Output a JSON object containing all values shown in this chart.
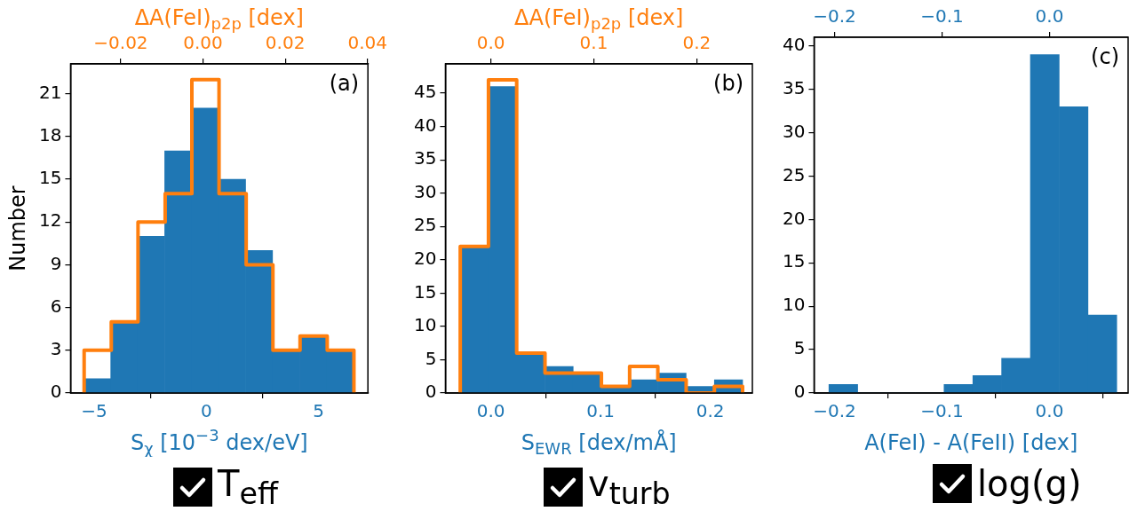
{
  "chart_data": [
    {
      "type": "histogram",
      "title": "(a)",
      "xlabel": "S$_{χ}$ [10$^{−3}$ dex/eV]",
      "x2label": "ΔA(FeI)$_{p2p}$ [dex]",
      "ylabel": "Number",
      "annotations": [
        "T$_{eff}$"
      ],
      "xlim": [
        -6.05,
        7.2
      ],
      "xticks": [
        {
          "value": -5,
          "label": "−5"
        },
        0,
        5
      ],
      "x2lim": [
        -0.0322,
        0.0401
      ],
      "x2ticks": [
        {
          "value": -0.02,
          "label": "−0.02"
        },
        {
          "value": 0,
          "label": "0.00"
        },
        0.02,
        0.04
      ],
      "ylim": [
        0,
        23.1
      ],
      "yticks": [
        0,
        3,
        6,
        9,
        12,
        15,
        18,
        21
      ],
      "bins": [
        -5.46,
        -4.26,
        -3.06,
        -1.86,
        -0.65,
        0.55,
        1.75,
        2.95,
        4.16,
        5.36,
        6.56
      ],
      "series": [
        {
          "color": "#1f77b4",
          "values": [
            1,
            5,
            11,
            17,
            20,
            15,
            10,
            3,
            4,
            3
          ]
        },
        {
          "type": "step",
          "axis": "x2",
          "color": "#ff7f0e",
          "x": [
            -0.0289,
            -0.0289,
            -0.0223,
            -0.0158,
            -0.0092,
            -0.0027,
            0.0039,
            0.0105,
            0.017,
            0.0236,
            0.0302,
            0.0367
          ],
          "values": [
            0,
            3,
            5,
            12,
            14,
            22,
            14,
            9,
            3,
            4,
            3,
            0
          ]
        }
      ]
    },
    {
      "type": "histogram",
      "title": "(b)",
      "xlabel": "S$_{EWR}$ [dex/mÅ]",
      "x2label": "ΔA(FeI)$_{p2p}$ [dex]",
      "annotations": [
        "v$_{turb}$"
      ],
      "xlim": [
        -0.0414,
        0.2384
      ],
      "xticks": [
        {
          "value": 0,
          "label": "0.0"
        },
        0.1,
        0.2
      ],
      "x2lim": [
        -0.0441,
        0.254
      ],
      "x2ticks": [
        {
          "value": 0,
          "label": "0.0"
        },
        0.1,
        0.2
      ],
      "ylim": [
        0,
        49.4
      ],
      "yticks": [
        0,
        5,
        10,
        15,
        20,
        25,
        30,
        35,
        40,
        45
      ],
      "bins": [
        -0.0279,
        -0.0022,
        0.0236,
        0.0493,
        0.0751,
        0.1008,
        0.1265,
        0.1523,
        0.178,
        0.2038,
        0.2295
      ],
      "series": [
        {
          "color": "#1f77b4",
          "values": [
            22,
            46,
            6,
            4,
            3,
            1,
            2,
            3,
            1,
            2
          ]
        },
        {
          "type": "step",
          "axis": "x2",
          "color": "#ff7f0e",
          "x": [
            -0.0297,
            -0.0297,
            -0.0023,
            0.0251,
            0.0526,
            0.08,
            0.1074,
            0.1348,
            0.1622,
            0.1897,
            0.2171,
            0.2445
          ],
          "values": [
            0,
            22,
            47,
            6,
            3,
            3,
            1,
            4,
            2,
            0,
            1,
            0
          ]
        }
      ]
    },
    {
      "type": "histogram",
      "title": "(c)",
      "xlabel": "A(FeI) - A(FeII) [dex]",
      "annotations": [
        "log(g)"
      ],
      "xlim": [
        -0.219,
        0.0731
      ],
      "xticks": [
        {
          "value": -0.2,
          "label": "−0.2"
        },
        {
          "value": -0.1,
          "label": "−0.1"
        },
        {
          "value": 0,
          "label": "0.0"
        }
      ],
      "x2lim": [
        -0.219,
        0.0731
      ],
      "x2ticks": [
        {
          "value": -0.2,
          "label": "−0.2"
        },
        {
          "value": -0.1,
          "label": "−0.1"
        },
        {
          "value": 0,
          "label": "0.0"
        }
      ],
      "ylim": [
        0,
        41
      ],
      "yticks": [
        0,
        5,
        10,
        15,
        20,
        25,
        30,
        35,
        40
      ],
      "bins": [
        -0.2052,
        -0.1784,
        -0.1516,
        -0.1249,
        -0.0981,
        -0.0713,
        -0.0445,
        -0.0178,
        0.009,
        0.0358,
        0.0625
      ],
      "color": "#1f77b4",
      "values": [
        1,
        0,
        0,
        0,
        1,
        2,
        4,
        39,
        33,
        9
      ]
    }
  ]
}
